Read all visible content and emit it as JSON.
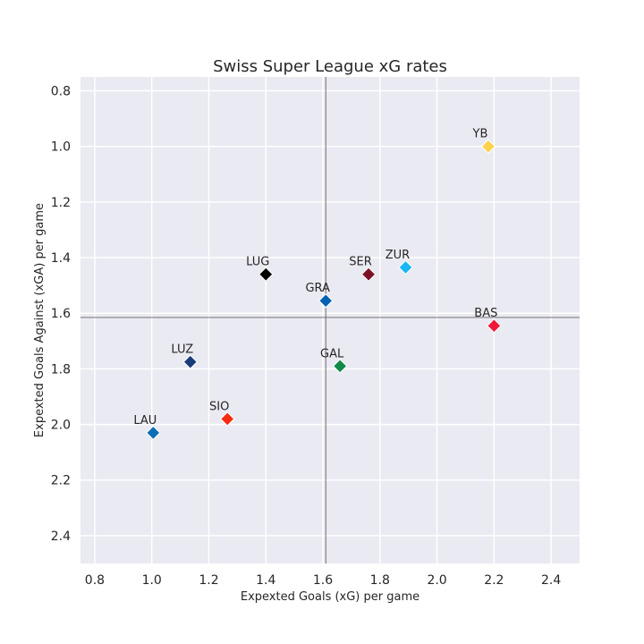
{
  "chart_data": {
    "type": "scatter",
    "title": "Swiss Super League xG rates",
    "xlabel": "Expexted Goals (xG) per game",
    "ylabel": "Expexted Goals Against (xGA) per game",
    "xlim": [
      0.75,
      2.5
    ],
    "ylim": [
      2.5,
      0.75
    ],
    "y_inverted": true,
    "grid": true,
    "xticks": [
      "0.8",
      "1.0",
      "1.2",
      "1.4",
      "1.6",
      "1.8",
      "2.0",
      "2.2",
      "2.4"
    ],
    "yticks": [
      "0.8",
      "1.0",
      "1.2",
      "1.4",
      "1.6",
      "1.8",
      "2.0",
      "2.2",
      "2.4"
    ],
    "reference_lines": {
      "x": 1.61,
      "y": 1.615
    },
    "marker": "diamond",
    "points": [
      {
        "label": "YB",
        "x": 2.18,
        "y": 1.0,
        "color": "#ffd24d"
      },
      {
        "label": "LUG",
        "x": 1.4,
        "y": 1.46,
        "color": "#000000"
      },
      {
        "label": "SER",
        "x": 1.76,
        "y": 1.46,
        "color": "#7a1126"
      },
      {
        "label": "ZUR",
        "x": 1.89,
        "y": 1.435,
        "color": "#19b6f2"
      },
      {
        "label": "GRA",
        "x": 1.61,
        "y": 1.555,
        "color": "#0062b0"
      },
      {
        "label": "BAS",
        "x": 2.2,
        "y": 1.645,
        "color": "#f0193a"
      },
      {
        "label": "LUZ",
        "x": 1.135,
        "y": 1.775,
        "color": "#1a3d7a"
      },
      {
        "label": "GAL",
        "x": 1.66,
        "y": 1.79,
        "color": "#118a4a"
      },
      {
        "label": "SIO",
        "x": 1.265,
        "y": 1.98,
        "color": "#f52c0f"
      },
      {
        "label": "LAU",
        "x": 1.005,
        "y": 2.03,
        "color": "#0c6fb5"
      }
    ],
    "colors": {
      "plot_background": "#eaeaf2",
      "grid": "#ffffff",
      "reference_line": "#606060"
    }
  }
}
